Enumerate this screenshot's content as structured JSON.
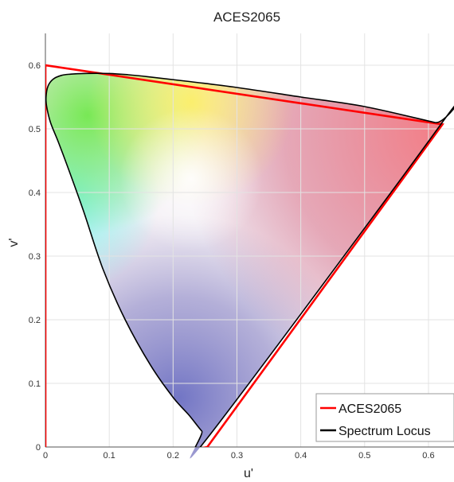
{
  "chart_data": {
    "type": "line",
    "title": "ACES2065",
    "xlabel": "u'",
    "ylabel": "v'",
    "xlim": [
      0,
      0.64
    ],
    "ylim": [
      0,
      0.65
    ],
    "x_ticks": [
      "0",
      "0.1",
      "0.2",
      "0.3",
      "0.4",
      "0.5",
      "0.6"
    ],
    "y_ticks": [
      "0",
      "0.1",
      "0.2",
      "0.3",
      "0.4",
      "0.5",
      "0.6"
    ],
    "grid": true,
    "legend_position": "bottom-right",
    "series": [
      {
        "name": "ACES2065",
        "color": "#ff0000",
        "closed": true,
        "points": [
          [
            0.0,
            0.6
          ],
          [
            0.622,
            0.507
          ],
          [
            0.2536,
            0.0
          ],
          [
            0.0,
            -0.05
          ]
        ]
      },
      {
        "name": "Spectrum Locus",
        "color": "#000000",
        "closed": true,
        "points": [
          [
            0.256,
            0.017
          ],
          [
            0.245,
            0.025
          ],
          [
            0.225,
            0.05
          ],
          [
            0.2,
            0.078
          ],
          [
            0.165,
            0.128
          ],
          [
            0.125,
            0.2
          ],
          [
            0.09,
            0.28
          ],
          [
            0.06,
            0.37
          ],
          [
            0.035,
            0.44
          ],
          [
            0.02,
            0.48
          ],
          [
            0.008,
            0.51
          ],
          [
            0.002,
            0.535
          ],
          [
            0.001,
            0.55
          ],
          [
            0.004,
            0.567
          ],
          [
            0.012,
            0.578
          ],
          [
            0.025,
            0.584
          ],
          [
            0.04,
            0.586
          ],
          [
            0.06,
            0.587
          ],
          [
            0.1,
            0.587
          ],
          [
            0.13,
            0.585
          ],
          [
            0.16,
            0.582
          ],
          [
            0.22,
            0.575
          ],
          [
            0.3,
            0.565
          ],
          [
            0.4,
            0.55
          ],
          [
            0.5,
            0.535
          ],
          [
            0.61,
            0.51
          ],
          [
            0.62,
            0.508
          ]
        ]
      }
    ]
  }
}
